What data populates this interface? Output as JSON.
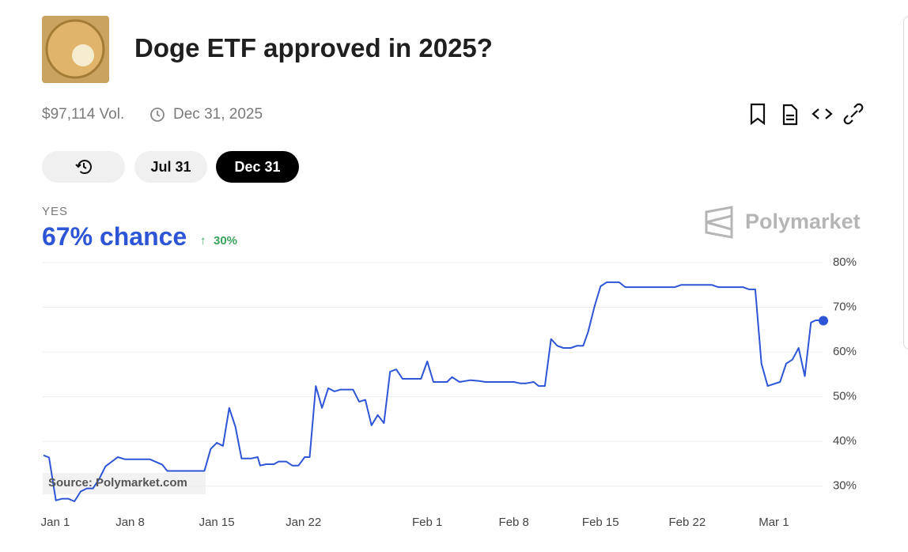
{
  "header": {
    "title": "Doge ETF approved in 2025?"
  },
  "meta": {
    "volume": "$97,114 Vol.",
    "end_date": "Dec 31, 2025"
  },
  "date_tabs": [
    "Jul 31",
    "Dec 31"
  ],
  "outcome": {
    "label": "YES",
    "chance": "67% chance",
    "change": "30%"
  },
  "brand": "Polymarket",
  "source": "Source: Polymarket.com",
  "chart_data": {
    "type": "line",
    "color": "#2d55d6",
    "grid": true,
    "x": [
      0,
      0.45,
      1,
      1.5,
      2,
      2.5,
      3,
      3.5,
      4,
      4.5,
      5,
      6,
      6.6,
      8.6,
      9.6,
      10,
      13,
      13.5,
      14,
      14.5,
      15,
      15.5,
      16,
      16.8,
      17.3,
      17.5,
      18,
      18.6,
      19,
      19.6,
      20.1,
      20.6,
      21.1,
      21.5,
      22,
      22.5,
      23,
      23.5,
      24,
      25,
      25.5,
      26,
      26.5,
      27,
      27.5,
      28,
      28.5,
      29,
      30.5,
      31,
      31.5,
      32.6,
      33,
      33.6,
      34.5,
      35.2,
      35.7,
      38,
      38.5,
      39,
      39.6,
      40,
      40.5,
      41,
      41.5,
      42,
      42.6,
      43.1,
      43.6,
      44,
      44.5,
      45,
      45.5,
      46.5,
      47,
      51,
      51.5,
      54,
      54.5,
      56.5,
      57,
      57.5,
      58,
      58.5,
      59.5,
      60,
      60.5,
      61,
      61.5,
      62,
      62.4,
      63
    ],
    "values": [
      36.9,
      36.4,
      26.8,
      27.2,
      27.2,
      26.6,
      28.8,
      29.5,
      29.5,
      31.6,
      34.4,
      36.5,
      36,
      36,
      34.8,
      33.4,
      33.4,
      38.3,
      39.7,
      39,
      47.5,
      43.3,
      36.2,
      36.2,
      36.5,
      34.6,
      34.9,
      34.9,
      35.5,
      35.5,
      34.6,
      34.6,
      36.5,
      36.5,
      52.4,
      47.5,
      51.9,
      51.2,
      51.6,
      51.6,
      48.9,
      49.3,
      43.6,
      45.9,
      44.1,
      55.6,
      56.1,
      54,
      54,
      57.9,
      53.3,
      53.3,
      54.4,
      53.3,
      53.7,
      53.5,
      53.3,
      53.3,
      53,
      53,
      53.3,
      52.4,
      52.4,
      62.9,
      61.4,
      60.9,
      60.9,
      61.4,
      61.4,
      64.5,
      70.1,
      74.7,
      75.6,
      75.6,
      74.5,
      74.5,
      75,
      75,
      74.5,
      74.5,
      74,
      74,
      57.4,
      52.4,
      53.3,
      57.4,
      58.3,
      60.9,
      54.6,
      66.6,
      67.1,
      67
    ],
    "xlim": [
      0,
      63
    ],
    "xticks": [
      {
        "value": 0,
        "label": "Jan 1"
      },
      {
        "value": 7,
        "label": "Jan 8"
      },
      {
        "value": 14,
        "label": "Jan 15"
      },
      {
        "value": 21,
        "label": "Jan 22"
      },
      {
        "value": 31,
        "label": "Feb 1"
      },
      {
        "value": 38,
        "label": "Feb 8"
      },
      {
        "value": 45,
        "label": "Feb 15"
      },
      {
        "value": 52,
        "label": "Feb 22"
      },
      {
        "value": 59,
        "label": "Mar 1"
      }
    ],
    "ylim": [
      25,
      80
    ],
    "yticks": [
      {
        "value": 30,
        "label": "30%"
      },
      {
        "value": 40,
        "label": "40%"
      },
      {
        "value": 50,
        "label": "50%"
      },
      {
        "value": 60,
        "label": "60%"
      },
      {
        "value": 70,
        "label": "70%"
      },
      {
        "value": 80,
        "label": "80%"
      }
    ]
  }
}
